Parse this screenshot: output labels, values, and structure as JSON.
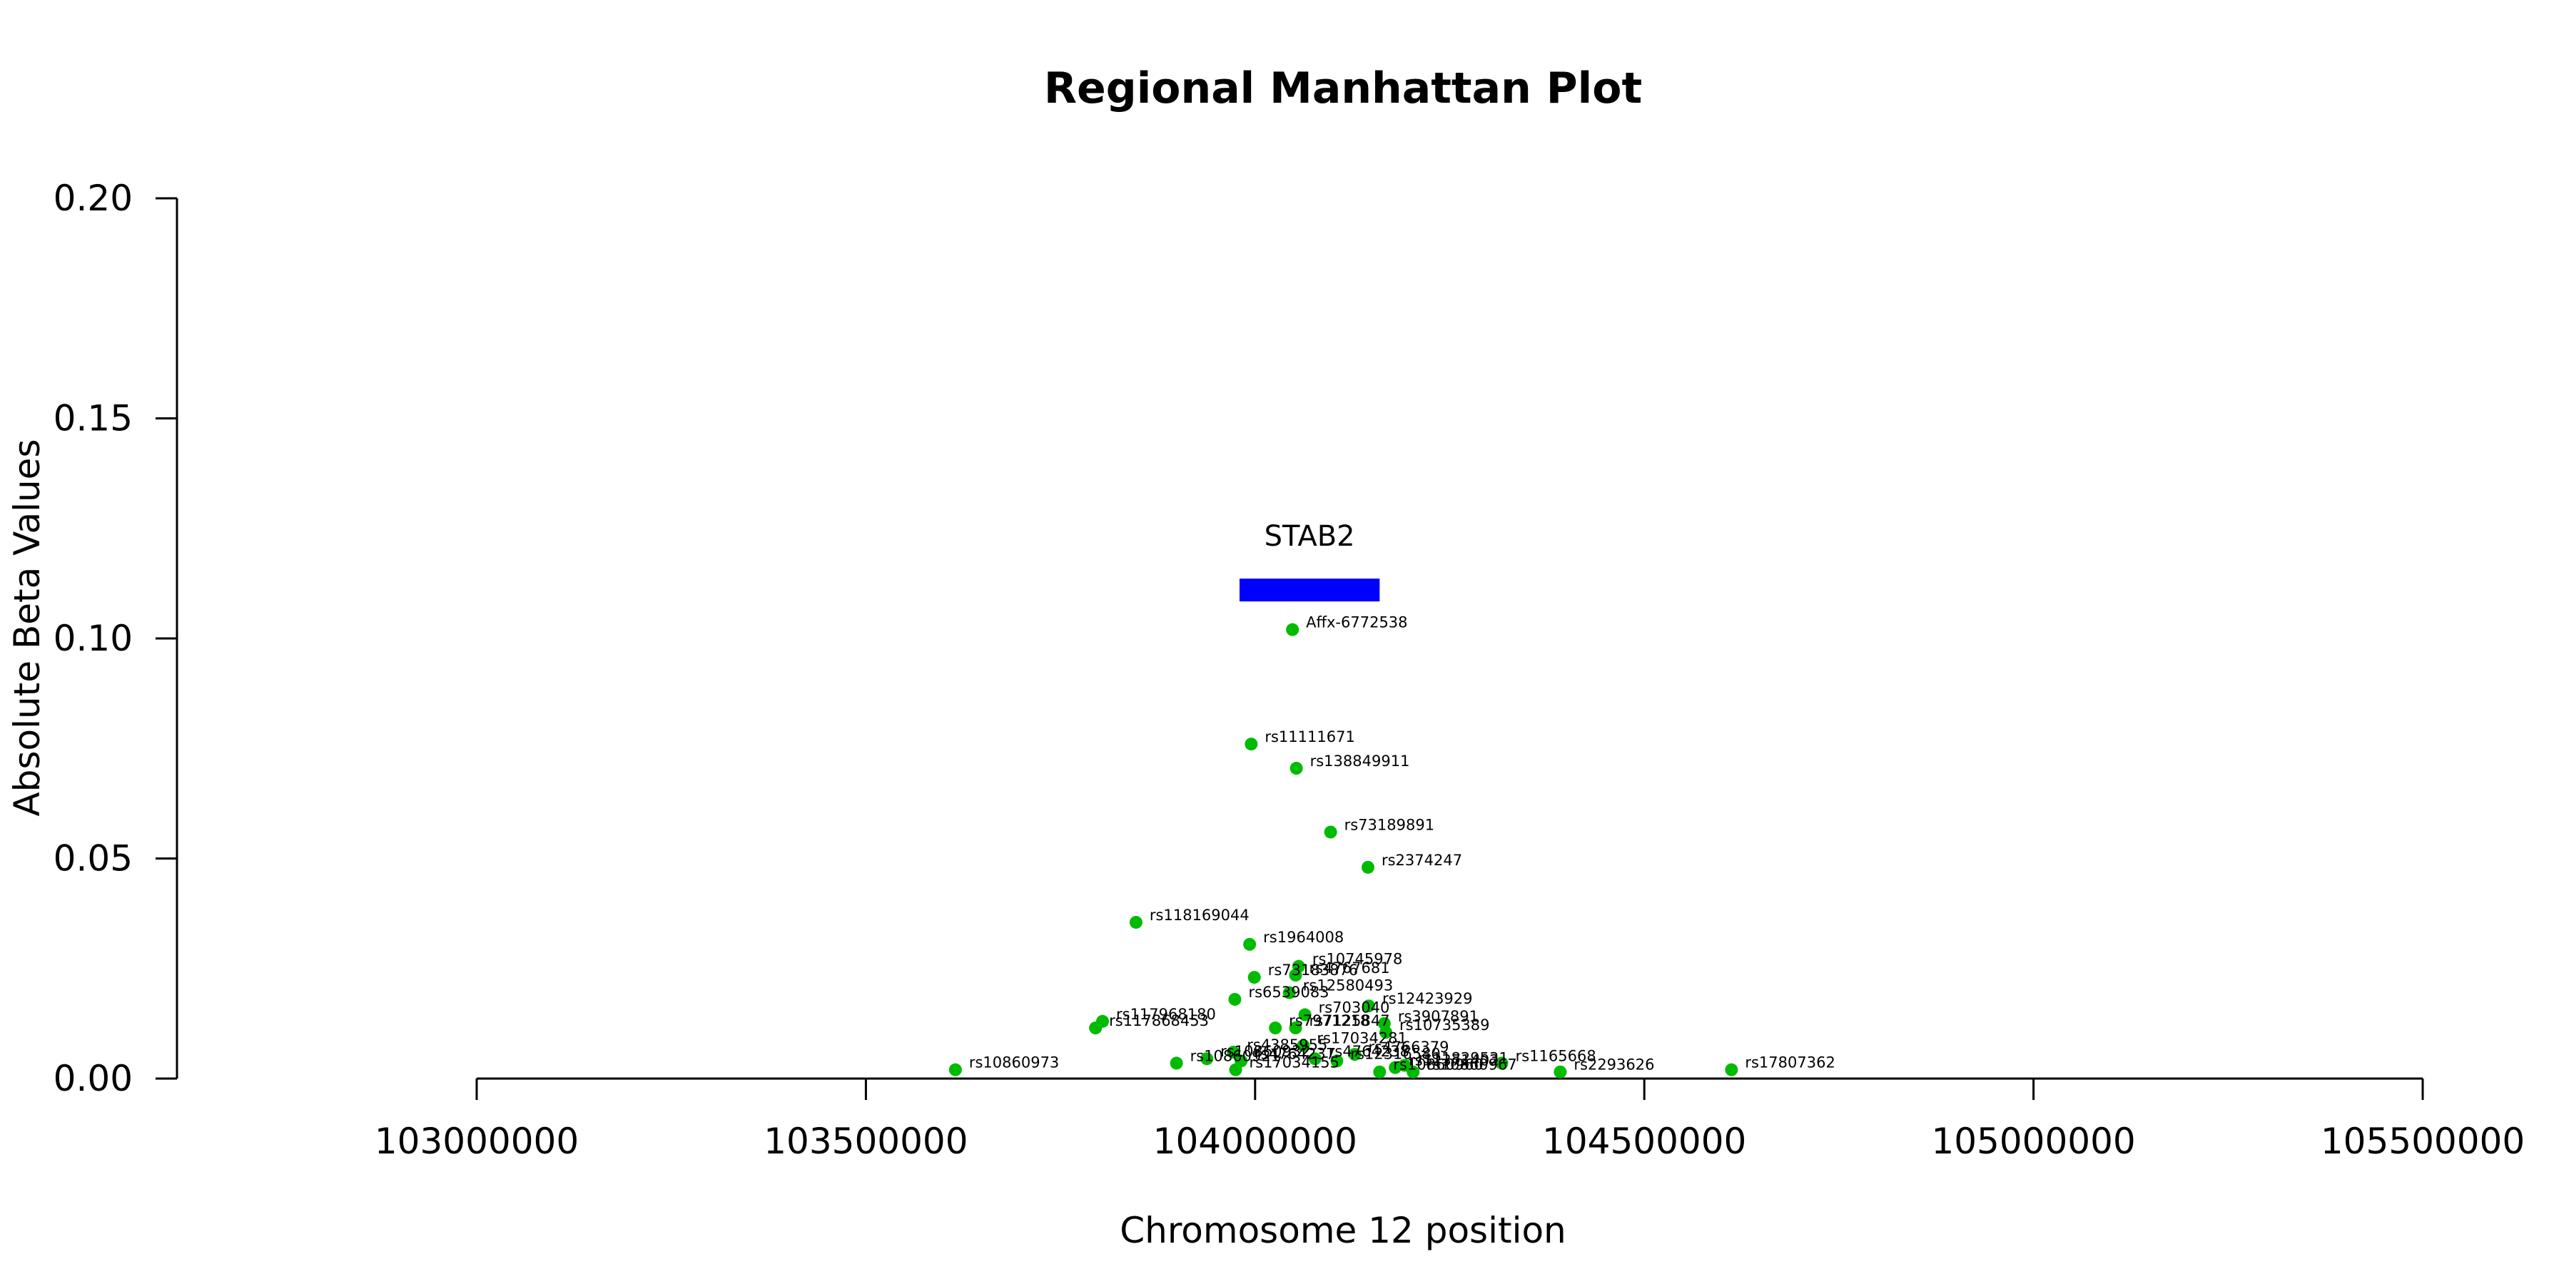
{
  "chart_data": {
    "type": "scatter",
    "title": "Regional Manhattan Plot",
    "xlabel": "Chromosome 12 position",
    "ylabel": "Absolute Beta Values",
    "xlim": [
      103000000,
      105500000
    ],
    "ylim": [
      0,
      0.2
    ],
    "x_ticks": [
      103000000,
      103500000,
      104000000,
      104500000,
      105000000,
      105500000
    ],
    "x_tick_labels": [
      "103000000",
      "103500000",
      "104000000",
      "104500000",
      "105000000",
      "105500000"
    ],
    "y_ticks": [
      0,
      0.05,
      0.1,
      0.15,
      0.2
    ],
    "y_tick_labels": [
      "0.00",
      "0.05",
      "0.10",
      "0.15",
      "0.20"
    ],
    "point_color": "#00bb00",
    "gene": {
      "name": "STAB2",
      "start": 103980000,
      "end": 104160000,
      "y": 0.111,
      "color": "#0000ff"
    },
    "points": [
      {
        "id": "Affx-6772538",
        "x": 104048000,
        "y": 0.102
      },
      {
        "id": "rs11111671",
        "x": 103995000,
        "y": 0.076
      },
      {
        "id": "rs138849911",
        "x": 104053000,
        "y": 0.0705
      },
      {
        "id": "rs73189891",
        "x": 104097000,
        "y": 0.056
      },
      {
        "id": "rs2374247",
        "x": 104145000,
        "y": 0.048
      },
      {
        "id": "rs118169044",
        "x": 103847000,
        "y": 0.0355
      },
      {
        "id": "rs1964008",
        "x": 103993000,
        "y": 0.0305
      },
      {
        "id": "rs10745978",
        "x": 104056000,
        "y": 0.0255
      },
      {
        "id": "rs73183876",
        "x": 103999000,
        "y": 0.023
      },
      {
        "id": "rs4767681",
        "x": 104052000,
        "y": 0.0235
      },
      {
        "id": "rs12580493",
        "x": 104044000,
        "y": 0.0195
      },
      {
        "id": "rs6539083",
        "x": 103974000,
        "y": 0.018
      },
      {
        "id": "rs12423929",
        "x": 104146000,
        "y": 0.0165
      },
      {
        "id": "rs703040",
        "x": 104064000,
        "y": 0.0145
      },
      {
        "id": "rs117968180",
        "x": 103804000,
        "y": 0.013
      },
      {
        "id": "rs117868453",
        "x": 103795000,
        "y": 0.0115
      },
      {
        "id": "rs7971218",
        "x": 104026000,
        "y": 0.0115
      },
      {
        "id": "rs7125847",
        "x": 104052000,
        "y": 0.0115
      },
      {
        "id": "rs3907891",
        "x": 104166000,
        "y": 0.0125
      },
      {
        "id": "rs10735389",
        "x": 104168000,
        "y": 0.0105
      },
      {
        "id": "rs17034281",
        "x": 104062000,
        "y": 0.0075
      },
      {
        "id": "rs4385955",
        "x": 103972000,
        "y": 0.006
      },
      {
        "id": "rs4766379",
        "x": 104128000,
        "y": 0.0055
      },
      {
        "id": "rs10860932",
        "x": 103938000,
        "y": 0.0045
      },
      {
        "id": "rs4764237",
        "x": 103982000,
        "y": 0.004
      },
      {
        "id": "rs4764238",
        "x": 104077000,
        "y": 0.0045
      },
      {
        "id": "rs12316580",
        "x": 104105000,
        "y": 0.004
      },
      {
        "id": "rs11829531",
        "x": 104192000,
        "y": 0.003
      },
      {
        "id": "rs1165668",
        "x": 104317000,
        "y": 0.0035
      },
      {
        "id": "rs10860921",
        "x": 103899000,
        "y": 0.0035
      },
      {
        "id": "rs17034155",
        "x": 103975000,
        "y": 0.002
      },
      {
        "id": "rs10860967",
        "x": 104203000,
        "y": 0.0015
      },
      {
        "id": "rs2293626",
        "x": 104392000,
        "y": 0.0015
      },
      {
        "id": "rs10860973",
        "x": 103615000,
        "y": 0.002
      },
      {
        "id": "rs17807362",
        "x": 104612000,
        "y": 0.002
      },
      {
        "id": "rs10860960",
        "x": 104160000,
        "y": 0.0015
      },
      {
        "id": "rs12371402",
        "x": 104180000,
        "y": 0.0025
      }
    ]
  }
}
